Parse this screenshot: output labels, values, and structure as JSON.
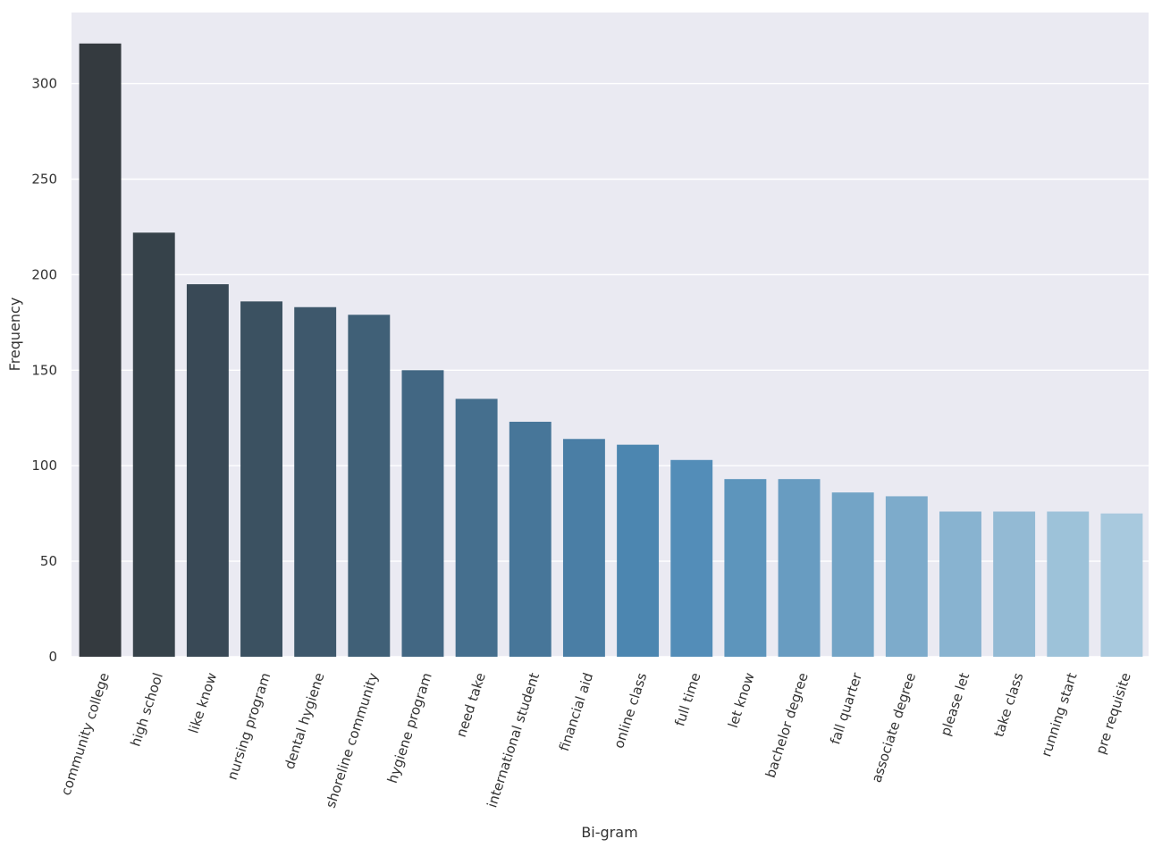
{
  "chart_data": {
    "type": "bar",
    "title": "",
    "xlabel": "Bi-gram",
    "ylabel": "Frequency",
    "categories": [
      "community college",
      "high school",
      "like know",
      "nursing program",
      "dental hygiene",
      "shoreline community",
      "hygiene program",
      "need take",
      "international student",
      "financial aid",
      "online class",
      "full time",
      "let know",
      "bachelor degree",
      "fall quarter",
      "associate degree",
      "please let",
      "take class",
      "running start",
      "pre requisite"
    ],
    "values": [
      321,
      222,
      195,
      186,
      183,
      179,
      150,
      135,
      123,
      114,
      111,
      103,
      93,
      93,
      86,
      84,
      76,
      76,
      76,
      75
    ],
    "ylim": [
      0,
      335
    ],
    "yticks": [
      0,
      50,
      100,
      150,
      200,
      250,
      300
    ],
    "grid": true,
    "legend": "none",
    "colors": {
      "background": "#eaeaf2",
      "grid": "#ffffff",
      "palette_start": "#343a3f",
      "palette_end": "#a8c9de"
    }
  }
}
